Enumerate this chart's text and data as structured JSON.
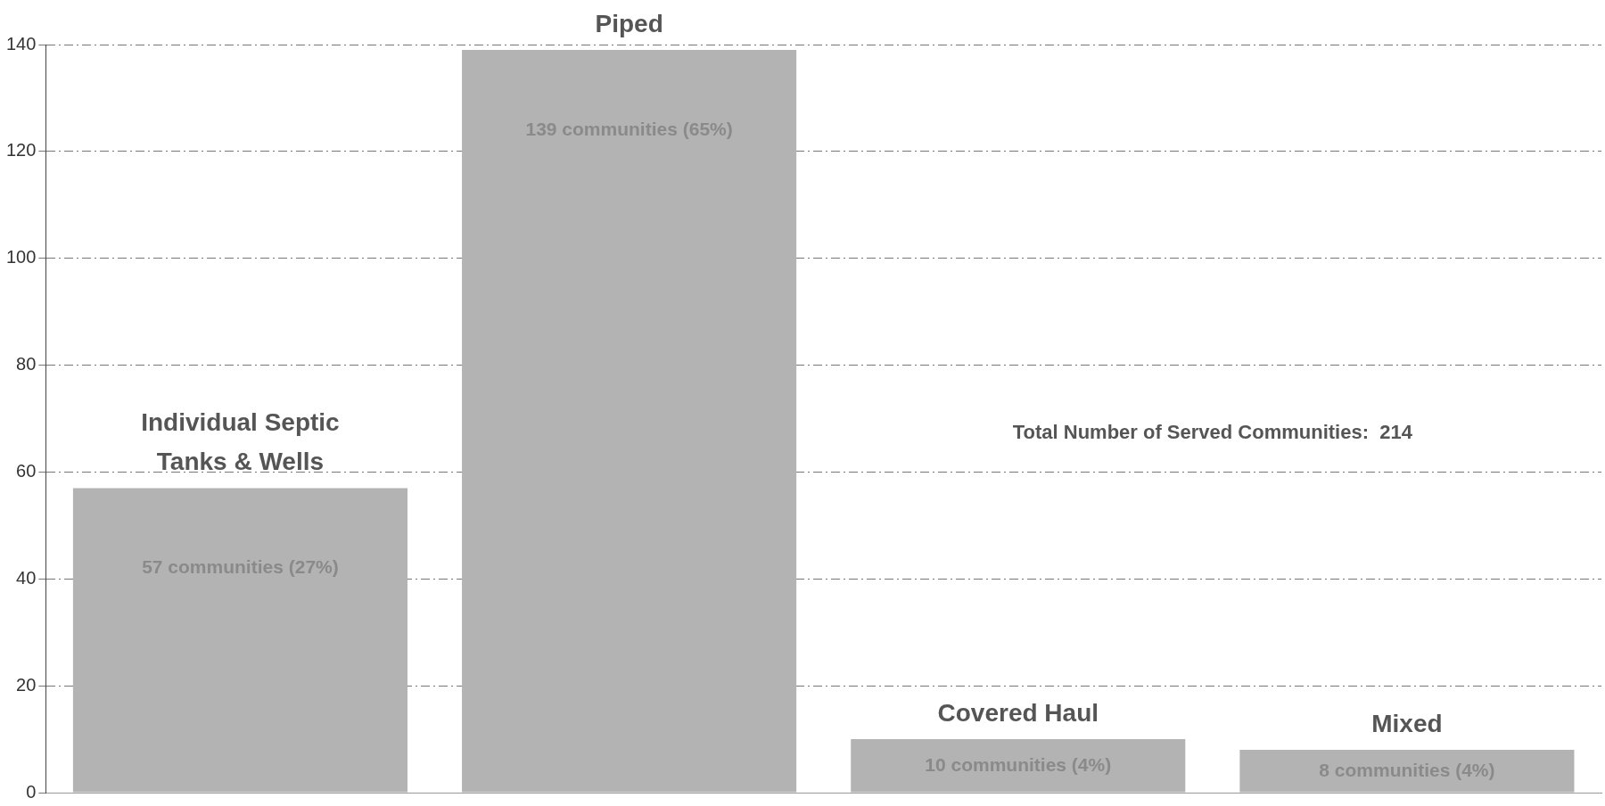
{
  "chart_data": {
    "type": "bar",
    "categories": [
      "Individual Septic\nTanks & Wells",
      "Piped",
      "Covered Haul",
      "Mixed"
    ],
    "values": [
      57,
      139,
      10,
      8
    ],
    "value_labels": [
      "57 communities (27%)",
      "139 communities (65%)",
      "10 communities (4%)",
      "8 communities (4%)"
    ],
    "color": "#b3b3b3",
    "ylim": [
      0,
      140
    ],
    "yticks": [
      0,
      20,
      40,
      60,
      80,
      100,
      120,
      140
    ],
    "grid": "y",
    "annotations": [
      "Total Number of Served Communities:  214"
    ]
  }
}
